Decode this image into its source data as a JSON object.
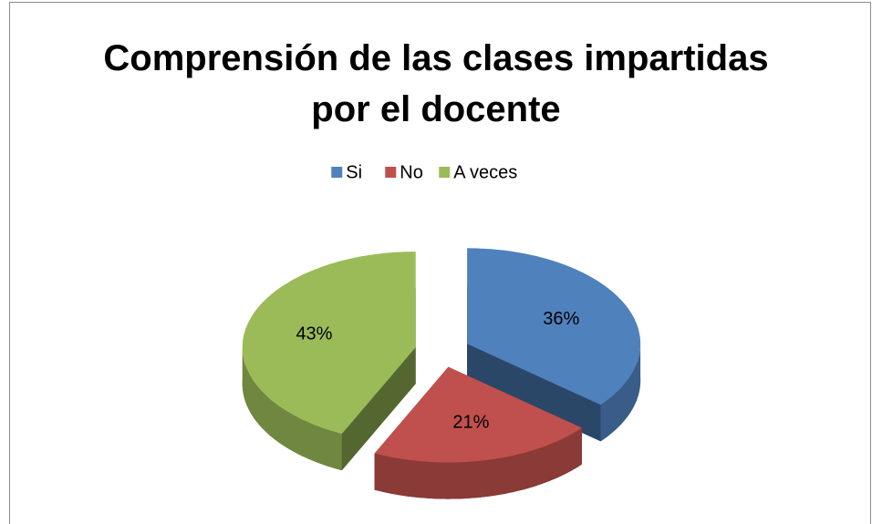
{
  "chart_data": {
    "type": "pie",
    "title": "Comprensión de las clases impartidas por el docente",
    "categories": [
      "Si",
      "No",
      "A veces"
    ],
    "values": [
      36,
      21,
      43
    ],
    "value_labels": [
      "36%",
      "21%",
      "43%"
    ],
    "colors": [
      "#4f81bd",
      "#c0504d",
      "#9bbb59"
    ],
    "legend": "top"
  }
}
